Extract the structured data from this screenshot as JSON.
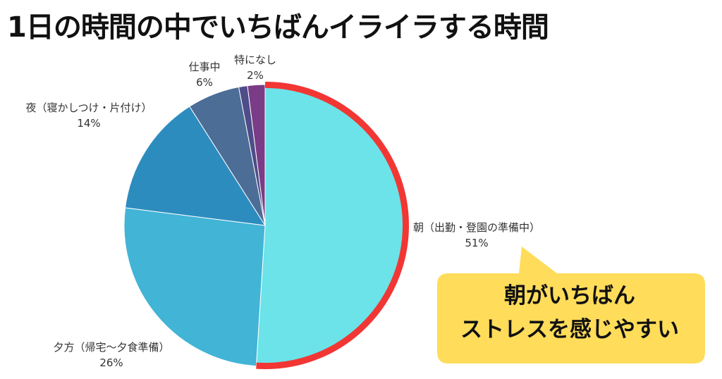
{
  "title": "1日の時間の中でいちばんイライラする時間",
  "chart_data": {
    "type": "pie",
    "title": "1日の時間の中でいちばんイライラする時間",
    "slices": [
      {
        "label": "朝（出勤・登園の準備中）",
        "value": 51,
        "percent_text": "51%",
        "color": "#6be3e8",
        "highlighted": true
      },
      {
        "label": "夕方（帰宅〜夕食準備）",
        "value": 26,
        "percent_text": "26%",
        "color": "#42b4d6"
      },
      {
        "label": "夜（寝かしつけ・片付け）",
        "value": 14,
        "percent_text": "14%",
        "color": "#2d8cbe"
      },
      {
        "label": "仕事中",
        "value": 6,
        "percent_text": "6%",
        "color": "#4c6d96"
      },
      {
        "label": "",
        "value": 1,
        "percent_text": "",
        "color": "#4e4d8a"
      },
      {
        "label": "特になし",
        "value": 2,
        "percent_text": "2%",
        "color": "#7a3c86"
      }
    ],
    "highlight_color": "#f23633"
  },
  "callout": {
    "line1": "朝がいちばん",
    "line2": "ストレスを感じやすい",
    "background": "#ffdc5a"
  }
}
